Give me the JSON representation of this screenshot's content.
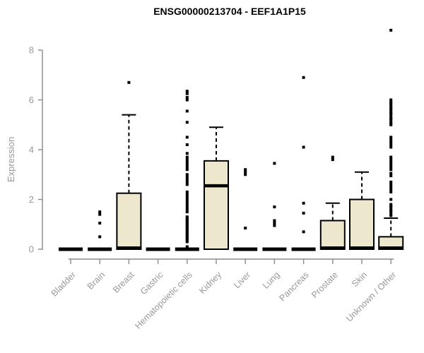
{
  "page": {
    "title": "ENSG00000213704 - EEF1A1P15"
  },
  "chart_data": {
    "type": "boxplot",
    "title": "ENSG00000213704 - EEF1A1P15",
    "ylabel": "Expression",
    "xlabel": "",
    "ylim": [
      0,
      9
    ],
    "yticks": [
      0,
      2,
      4,
      6,
      8
    ],
    "grid": false,
    "legend": "none",
    "colors": {
      "box_fill": "#ece7cd",
      "box_stroke": "#000000",
      "median": "#000000",
      "outlier": "#000000",
      "axis_line": "#8a8a8a",
      "tick_label": "#999999",
      "title": "#000000"
    },
    "categories": [
      "Bladder",
      "Brain",
      "Breast",
      "Gastric",
      "Hematopoietic cells",
      "Kidney",
      "Liver",
      "Lung",
      "Pancreas",
      "Prostate",
      "Skin",
      "Unknown / Other"
    ],
    "series": [
      {
        "name": "Bladder",
        "q1": 0,
        "median": 0,
        "q3": 0,
        "whisker_low": 0,
        "whisker_high": 0,
        "outliers": []
      },
      {
        "name": "Brain",
        "q1": 0,
        "median": 0,
        "q3": 0,
        "whisker_low": 0,
        "whisker_high": 0,
        "outliers": [
          1.5,
          1.4,
          1.05,
          0.5
        ]
      },
      {
        "name": "Breast",
        "q1": 0,
        "median": 0.05,
        "q3": 2.25,
        "whisker_low": 0,
        "whisker_high": 5.4,
        "outliers": [
          6.7
        ]
      },
      {
        "name": "Gastric",
        "q1": 0,
        "median": 0,
        "q3": 0,
        "whisker_low": 0,
        "whisker_high": 0,
        "outliers": []
      },
      {
        "name": "Hematopoietic cells",
        "q1": 0,
        "median": 0,
        "q3": 0,
        "whisker_low": 0,
        "whisker_high": 0,
        "outliers": [
          6.35,
          6.25,
          6.1,
          6.0,
          5.55,
          5.1,
          4.5,
          4.2,
          3.85,
          3.7,
          3.6,
          3.5,
          3.4,
          3.3,
          3.2,
          3.0,
          2.9,
          2.8,
          2.7,
          2.6,
          2.3,
          2.2,
          2.1,
          2.0,
          1.9,
          1.8,
          1.7,
          1.6,
          1.5,
          1.3,
          1.25,
          1.2,
          1.15,
          1.1,
          1.05,
          1.0,
          0.95,
          0.9,
          0.85,
          0.8,
          0.75,
          0.7,
          0.65,
          0.6,
          0.55,
          0.5,
          0.45,
          0.4,
          0.35,
          0.3,
          0.1
        ]
      },
      {
        "name": "Kidney",
        "q1": 0,
        "median": 2.55,
        "q3": 3.55,
        "whisker_low": 0,
        "whisker_high": 4.9,
        "outliers": []
      },
      {
        "name": "Liver",
        "q1": 0,
        "median": 0,
        "q3": 0,
        "whisker_low": 0,
        "whisker_high": 0,
        "outliers": [
          3.2,
          3.1,
          3.0,
          0.85
        ]
      },
      {
        "name": "Lung",
        "q1": 0,
        "median": 0,
        "q3": 0,
        "whisker_low": 0,
        "whisker_high": 0,
        "outliers": [
          3.45,
          1.7,
          1.15,
          1.05,
          0.95
        ]
      },
      {
        "name": "Pancreas",
        "q1": 0,
        "median": 0,
        "q3": 0,
        "whisker_low": 0,
        "whisker_high": 0,
        "outliers": [
          6.9,
          4.1,
          1.85,
          1.45,
          0.7
        ]
      },
      {
        "name": "Prostate",
        "q1": 0,
        "median": 0.05,
        "q3": 1.15,
        "whisker_low": 0,
        "whisker_high": 1.85,
        "outliers": [
          3.7,
          3.6
        ]
      },
      {
        "name": "Skin",
        "q1": 0,
        "median": 0.05,
        "q3": 2.0,
        "whisker_low": 0,
        "whisker_high": 3.1,
        "outliers": []
      },
      {
        "name": "Unknown / Other",
        "q1": 0,
        "median": 0.05,
        "q3": 0.5,
        "whisker_low": 0,
        "whisker_high": 1.25,
        "outliers": [
          8.8,
          6.0,
          5.9,
          5.85,
          5.8,
          5.7,
          5.65,
          5.6,
          5.5,
          5.45,
          5.4,
          5.3,
          5.25,
          5.2,
          5.1,
          5.05,
          5.0,
          4.5,
          4.4,
          4.3,
          4.2,
          4.1,
          3.7,
          3.6,
          3.5,
          3.4,
          3.3,
          3.2,
          3.05,
          2.95,
          2.7,
          2.6,
          2.5,
          2.4,
          2.3,
          2.0,
          1.8,
          1.75,
          1.7,
          1.6,
          1.55,
          1.5,
          1.4,
          1.35
        ]
      }
    ]
  }
}
